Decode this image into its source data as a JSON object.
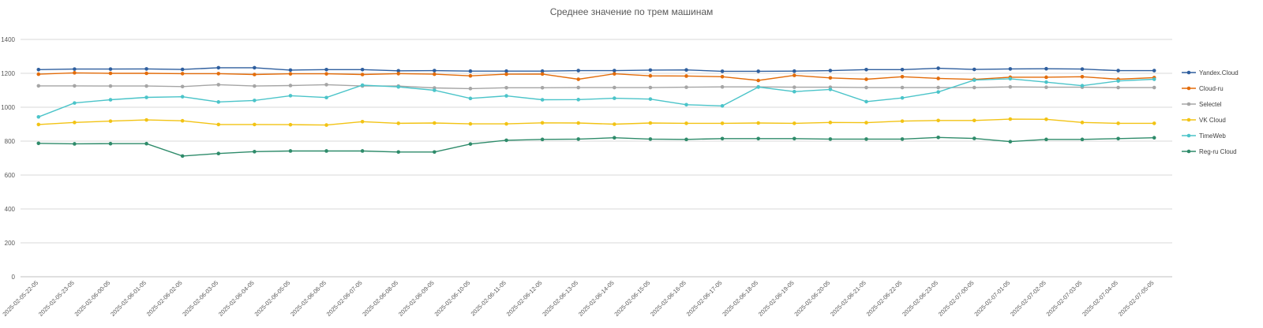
{
  "chart_data": {
    "type": "line",
    "title": "Среднее значение по трем машинам",
    "xlabel": "",
    "ylabel": "",
    "ylim": [
      0,
      1400
    ],
    "yticks": [
      0,
      200,
      400,
      600,
      800,
      1000,
      1200,
      1400
    ],
    "grid": true,
    "legend_position": "right",
    "categories": [
      "2025-02-05-22-05",
      "2025-02-05-23-05",
      "2025-02-06-00-05",
      "2025-02-06-01-05",
      "2025-02-06-02-05",
      "2025-02-06-03-05",
      "2025-02-06-04-05",
      "2025-02-06-05-05",
      "2025-02-06-06-05",
      "2025-02-06-07-05",
      "2025-02-06-08-05",
      "2025-02-06-09-05",
      "2025-02-06-10-05",
      "2025-02-06-11-05",
      "2025-02-06-12-05",
      "2025-02-06-13-05",
      "2025-02-06-14-05",
      "2025-02-06-15-05",
      "2025-02-06-16-05",
      "2025-02-06-17-05",
      "2025-02-06-18-05",
      "2025-02-06-19-05",
      "2025-02-06-20-05",
      "2025-02-06-21-05",
      "2025-02-06-22-05",
      "2025-02-06-23-05",
      "2025-02-07-00-05",
      "2025-02-07-01-05",
      "2025-02-07-02-05",
      "2025-02-07-03-05",
      "2025-02-07-04-05",
      "2025-02-07-05-05"
    ],
    "series": [
      {
        "name": "Yandex.Cloud",
        "color": "#2E5E9E",
        "values": [
          1222,
          1225,
          1225,
          1226,
          1223,
          1233,
          1233,
          1219,
          1222,
          1222,
          1215,
          1216,
          1213,
          1213,
          1213,
          1216,
          1216,
          1219,
          1220,
          1212,
          1212,
          1213,
          1216,
          1222,
          1222,
          1230,
          1223,
          1226,
          1227,
          1225,
          1216,
          1216
        ]
      },
      {
        "name": "Cloud-ru",
        "color": "#E36C0A",
        "values": [
          1195,
          1203,
          1200,
          1200,
          1198,
          1198,
          1193,
          1197,
          1197,
          1193,
          1198,
          1195,
          1185,
          1195,
          1196,
          1165,
          1197,
          1185,
          1184,
          1180,
          1158,
          1188,
          1173,
          1165,
          1180,
          1170,
          1164,
          1177,
          1177,
          1180,
          1165,
          1175
        ]
      },
      {
        "name": "Selectel",
        "color": "#A5A5A5",
        "values": [
          1126,
          1126,
          1125,
          1125,
          1122,
          1133,
          1125,
          1128,
          1133,
          1125,
          1125,
          1114,
          1110,
          1115,
          1115,
          1116,
          1116,
          1116,
          1118,
          1120,
          1120,
          1118,
          1118,
          1116,
          1116,
          1116,
          1116,
          1120,
          1118,
          1118,
          1116,
          1116
        ]
      },
      {
        "name": "VK Cloud",
        "color": "#F2C314",
        "values": [
          898,
          910,
          918,
          925,
          920,
          898,
          898,
          897,
          895,
          915,
          905,
          907,
          902,
          902,
          908,
          907,
          900,
          907,
          905,
          905,
          907,
          905,
          910,
          909,
          918,
          922,
          922,
          930,
          929,
          910,
          905,
          905
        ]
      },
      {
        "name": "TimeWeb",
        "color": "#4BC4C9",
        "values": [
          943,
          1025,
          1044,
          1058,
          1062,
          1031,
          1040,
          1068,
          1057,
          1130,
          1120,
          1100,
          1052,
          1067,
          1044,
          1045,
          1053,
          1048,
          1015,
          1008,
          1119,
          1092,
          1105,
          1033,
          1055,
          1090,
          1160,
          1168,
          1148,
          1127,
          1155,
          1165
        ]
      },
      {
        "name": "Reg-ru Cloud",
        "color": "#2E8B6A",
        "values": [
          787,
          784,
          785,
          785,
          712,
          727,
          738,
          742,
          742,
          742,
          736,
          736,
          783,
          805,
          810,
          812,
          820,
          812,
          810,
          815,
          815,
          815,
          812,
          812,
          812,
          822,
          816,
          797,
          810,
          810,
          815,
          820
        ]
      }
    ]
  }
}
